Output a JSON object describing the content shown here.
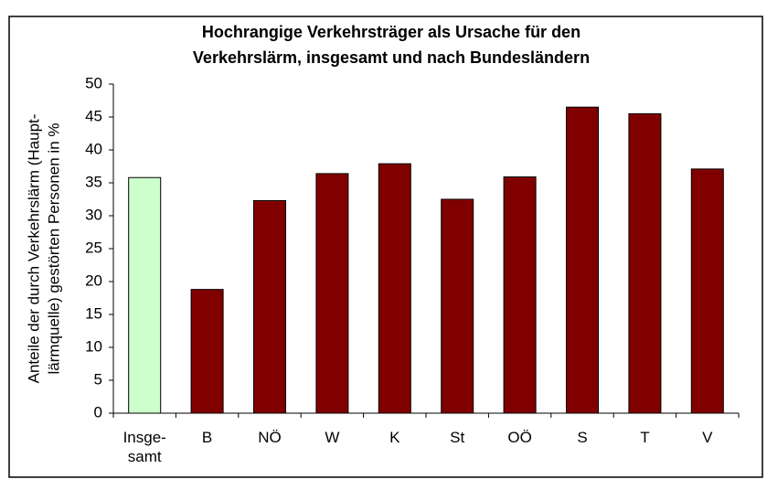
{
  "chart_data": {
    "type": "bar",
    "title": [
      "Hochrangige Verkehrsträger als Ursache für den",
      "Verkehrslärm, insgesamt und nach Bundesländern"
    ],
    "ylabel": [
      "Anteile der durch Verkehrslärm (Haupt-",
      "lärmquelle) gestörten Personen in %"
    ],
    "categories": [
      "Insge-\nsamt",
      "B",
      "NÖ",
      "W",
      "K",
      "St",
      "OÖ",
      "S",
      "T",
      "V"
    ],
    "values": [
      35.8,
      18.8,
      32.3,
      36.4,
      37.9,
      32.5,
      35.9,
      46.5,
      45.5,
      37.1
    ],
    "colors": [
      "#ccffcc",
      "#800000",
      "#800000",
      "#800000",
      "#800000",
      "#800000",
      "#800000",
      "#800000",
      "#800000",
      "#800000"
    ],
    "ylim": [
      0,
      50
    ],
    "yticks": [
      0,
      5,
      10,
      15,
      20,
      25,
      30,
      35,
      40,
      45,
      50
    ],
    "grid": false
  }
}
